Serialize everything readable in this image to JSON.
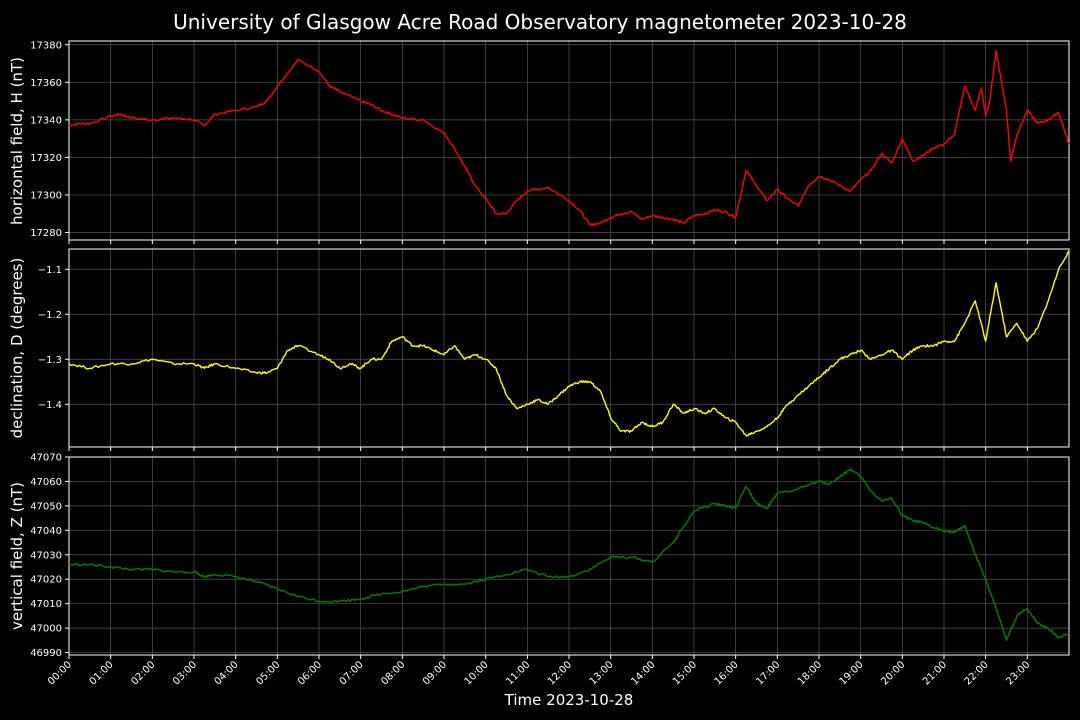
{
  "title": "University of Glasgow Acre Road Observatory magnetometer 2023-10-28",
  "xlabel": "Time 2023-10-28",
  "colors": {
    "background": "#000000",
    "grid": "#555555",
    "axes": "#ffffff"
  },
  "chart_data": [
    {
      "type": "line",
      "ylabel": "horizontal field, H (nT)",
      "ylim": [
        17276,
        17382
      ],
      "yticks": [
        17280,
        17300,
        17320,
        17340,
        17360,
        17380
      ],
      "ytick_labels": [
        "17280",
        "17300",
        "17320",
        "17340",
        "17360",
        "17380"
      ],
      "color": "#ff0000",
      "x_hours": [
        0,
        0.25,
        0.5,
        1,
        1.25,
        1.5,
        2,
        2.5,
        3,
        3.25,
        3.5,
        4,
        4.5,
        4.75,
        5,
        5.25,
        5.5,
        6,
        6.25,
        6.5,
        7,
        7.25,
        7.5,
        7.75,
        8,
        8.5,
        9,
        9.25,
        9.5,
        9.75,
        10,
        10.25,
        10.5,
        10.75,
        11,
        11.5,
        12,
        12.25,
        12.5,
        12.75,
        13,
        13.25,
        13.5,
        13.75,
        14,
        14.25,
        14.5,
        14.75,
        15,
        15.25,
        15.5,
        15.75,
        16,
        16.25,
        16.5,
        16.75,
        17,
        17.25,
        17.5,
        17.75,
        18,
        18.25,
        18.5,
        18.75,
        19,
        19.25,
        19.5,
        19.75,
        20,
        20.25,
        20.5,
        20.75,
        21,
        21.25,
        21.5,
        21.75,
        21.9,
        22,
        22.1,
        22.25,
        22.5,
        22.6,
        22.75,
        23,
        23.25,
        23.5,
        23.75,
        24
      ],
      "values": [
        17337,
        17338,
        17338,
        17342,
        17343,
        17341,
        17340,
        17341,
        17340,
        17337,
        17343,
        17345,
        17347,
        17350,
        17358,
        17365,
        17372,
        17366,
        17358,
        17355,
        17350,
        17348,
        17345,
        17343,
        17341,
        17340,
        17333,
        17325,
        17315,
        17305,
        17298,
        17290,
        17290,
        17297,
        17302,
        17304,
        17297,
        17292,
        17284,
        17285,
        17288,
        17290,
        17291,
        17287,
        17289,
        17288,
        17287,
        17285,
        17289,
        17290,
        17292,
        17291,
        17288,
        17313,
        17305,
        17297,
        17303,
        17298,
        17294,
        17305,
        17310,
        17308,
        17305,
        17302,
        17308,
        17313,
        17322,
        17317,
        17330,
        17318,
        17321,
        17325,
        17327,
        17332,
        17358,
        17345,
        17357,
        17342,
        17350,
        17377,
        17345,
        17318,
        17332,
        17345,
        17338,
        17340,
        17344,
        17327
      ],
      "color_hex": "#ff0000"
    },
    {
      "type": "line",
      "ylabel": "declination, D (degrees)",
      "ylim": [
        -1.495,
        -1.055
      ],
      "yticks": [
        -1.4,
        -1.3,
        -1.2,
        -1.1
      ],
      "ytick_labels": [
        "−1.4",
        "−1.3",
        "−1.2",
        "−1.1"
      ],
      "color": "#ffff00",
      "x_hours": [
        0,
        0.5,
        1,
        1.5,
        2,
        2.5,
        3,
        3.25,
        3.5,
        4,
        4.5,
        4.75,
        5,
        5.25,
        5.5,
        6,
        6.25,
        6.5,
        6.75,
        7,
        7.25,
        7.5,
        7.75,
        8,
        8.25,
        8.5,
        8.75,
        9,
        9.25,
        9.5,
        9.75,
        10,
        10.25,
        10.5,
        10.75,
        11,
        11.25,
        11.5,
        11.75,
        12,
        12.25,
        12.5,
        12.75,
        13,
        13.25,
        13.5,
        13.75,
        14,
        14.25,
        14.5,
        14.75,
        15,
        15.25,
        15.5,
        15.75,
        16,
        16.25,
        16.5,
        16.75,
        17,
        17.25,
        17.5,
        17.75,
        18,
        18.25,
        18.5,
        18.75,
        19,
        19.25,
        19.5,
        19.75,
        20,
        20.25,
        20.5,
        20.75,
        21,
        21.25,
        21.5,
        21.75,
        22,
        22.25,
        22.5,
        22.75,
        23,
        23.25,
        23.5,
        23.75,
        24
      ],
      "values": [
        -1.31,
        -1.32,
        -1.31,
        -1.31,
        -1.3,
        -1.31,
        -1.31,
        -1.32,
        -1.31,
        -1.32,
        -1.33,
        -1.33,
        -1.32,
        -1.28,
        -1.27,
        -1.29,
        -1.3,
        -1.32,
        -1.31,
        -1.32,
        -1.3,
        -1.3,
        -1.26,
        -1.25,
        -1.27,
        -1.27,
        -1.28,
        -1.29,
        -1.27,
        -1.3,
        -1.29,
        -1.3,
        -1.32,
        -1.38,
        -1.41,
        -1.4,
        -1.39,
        -1.4,
        -1.38,
        -1.36,
        -1.35,
        -1.35,
        -1.37,
        -1.43,
        -1.46,
        -1.46,
        -1.44,
        -1.45,
        -1.44,
        -1.4,
        -1.42,
        -1.41,
        -1.42,
        -1.41,
        -1.43,
        -1.44,
        -1.47,
        -1.46,
        -1.45,
        -1.43,
        -1.4,
        -1.38,
        -1.36,
        -1.34,
        -1.32,
        -1.3,
        -1.29,
        -1.28,
        -1.3,
        -1.29,
        -1.28,
        -1.3,
        -1.28,
        -1.27,
        -1.27,
        -1.26,
        -1.26,
        -1.22,
        -1.17,
        -1.26,
        -1.13,
        -1.25,
        -1.22,
        -1.26,
        -1.23,
        -1.17,
        -1.1,
        -1.06
      ]
    },
    {
      "type": "line",
      "ylabel": "vertical field, Z (nT)",
      "xlabel": "Time 2023-10-28",
      "ylim": [
        46989,
        47070
      ],
      "yticks": [
        46990,
        47000,
        47010,
        47020,
        47030,
        47040,
        47050,
        47060,
        47070
      ],
      "ytick_labels": [
        "46990",
        "47000",
        "47010",
        "47020",
        "47030",
        "47040",
        "47050",
        "47060",
        "47070"
      ],
      "color": "#008000",
      "x_hours": [
        0,
        0.5,
        1,
        1.5,
        2,
        2.5,
        3,
        3.25,
        3.5,
        4,
        4.5,
        5,
        5.5,
        6,
        6.5,
        7,
        7.5,
        8,
        8.5,
        9,
        9.5,
        10,
        10.5,
        11,
        11.5,
        12,
        12.5,
        13,
        13.5,
        14,
        14.5,
        15,
        15.5,
        15.75,
        16,
        16.25,
        16.5,
        16.75,
        17,
        17.5,
        18,
        18.25,
        18.5,
        18.75,
        19,
        19.25,
        19.5,
        19.75,
        20,
        20.25,
        20.5,
        20.75,
        21,
        21.25,
        21.5,
        21.75,
        22,
        22.25,
        22.5,
        22.75,
        23,
        23.25,
        23.5,
        23.75,
        24
      ],
      "values": [
        47026,
        47026,
        47025,
        47024,
        47024,
        47023,
        47023,
        47021,
        47022,
        47021,
        47019,
        47016,
        47013,
        47011,
        47011,
        47012,
        47014,
        47015,
        47017,
        47018,
        47018,
        47020,
        47022,
        47024,
        47021,
        47021,
        47024,
        47029,
        47029,
        47027,
        47035,
        47048,
        47051,
        47050,
        47049,
        47058,
        47051,
        47049,
        47055,
        47057,
        47060,
        47059,
        47062,
        47065,
        47062,
        47056,
        47052,
        47053,
        47046,
        47044,
        47043,
        47041,
        47040,
        47039,
        47042,
        47030,
        47020,
        47008,
        46995,
        47005,
        47008,
        47002,
        47000,
        46996,
        46998
      ]
    }
  ],
  "xticks": [
    "00:00",
    "01:00",
    "02:00",
    "03:00",
    "04:00",
    "05:00",
    "06:00",
    "07:00",
    "08:00",
    "09:00",
    "10:00",
    "11:00",
    "12:00",
    "13:00",
    "14:00",
    "15:00",
    "16:00",
    "17:00",
    "18:00",
    "19:00",
    "20:00",
    "21:00",
    "22:00",
    "23:00"
  ]
}
